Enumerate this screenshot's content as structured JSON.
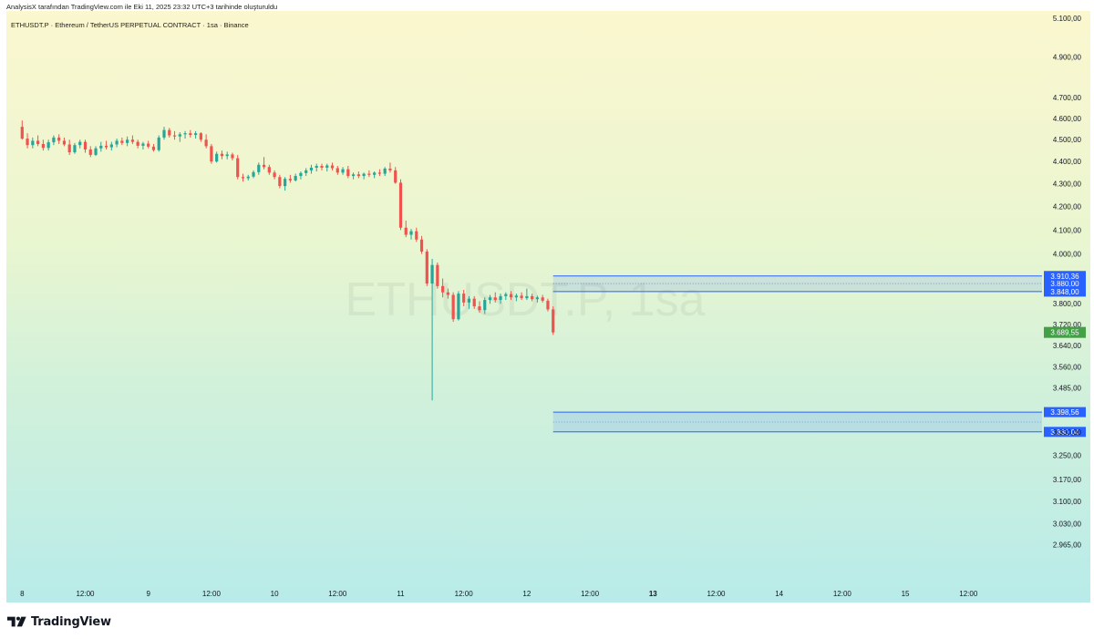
{
  "header": {
    "attribution": "AnalysisX tarafından TradingView.com ile Eki 11, 2025 23:32 UTC+3 tarihinde oluşturuldu",
    "symbol_line": "ETHUSDT.P · Ethereum / TetherUS PERPETUAL CONTRACT · 1sa · Binance"
  },
  "watermark": "ETHUSDT.P, 1sa",
  "brand": {
    "name": "TradingView"
  },
  "colors": {
    "up": "#26a69a",
    "down": "#ef5350",
    "zone_line": "#2962ff",
    "label_blue": "#2962ff",
    "label_green": "#43a047"
  },
  "chart_data": {
    "type": "candlestick",
    "symbol": "ETHUSDT.P",
    "interval": "1sa",
    "exchange": "Binance",
    "x_ticks": [
      {
        "label": "8",
        "t": 0,
        "bold": false
      },
      {
        "label": "12:00",
        "t": 12,
        "bold": false
      },
      {
        "label": "9",
        "t": 24,
        "bold": false
      },
      {
        "label": "12:00",
        "t": 36,
        "bold": false
      },
      {
        "label": "10",
        "t": 48,
        "bold": false
      },
      {
        "label": "12:00",
        "t": 60,
        "bold": false
      },
      {
        "label": "11",
        "t": 72,
        "bold": false
      },
      {
        "label": "12:00",
        "t": 84,
        "bold": false
      },
      {
        "label": "12",
        "t": 96,
        "bold": false
      },
      {
        "label": "12:00",
        "t": 108,
        "bold": false
      },
      {
        "label": "13",
        "t": 120,
        "bold": true
      },
      {
        "label": "12:00",
        "t": 132,
        "bold": false
      },
      {
        "label": "14",
        "t": 144,
        "bold": false
      },
      {
        "label": "12:00",
        "t": 156,
        "bold": false
      },
      {
        "label": "15",
        "t": 168,
        "bold": false
      },
      {
        "label": "12:00",
        "t": 180,
        "bold": false
      }
    ],
    "x_range": [
      -3,
      194
    ],
    "y_axis": {
      "scale": "log",
      "range": [
        2900,
        5100
      ],
      "ticks": [
        "5.100,00",
        "4.900,00",
        "4.700,00",
        "4.600,00",
        "4.500,00",
        "4.400,00",
        "4.300,00",
        "4.200,00",
        "4.100,00",
        "4.000,00",
        "3.800,00",
        "3.720,00",
        "3.640,00",
        "3.560,00",
        "3.485,00",
        "3.330,00",
        "3.250,00",
        "3.170,00",
        "3.100,00",
        "3.030,00",
        "2.965,00"
      ],
      "tick_values": [
        5100,
        4900,
        4700,
        4600,
        4500,
        4400,
        4300,
        4200,
        4100,
        4000,
        3800,
        3720,
        3640,
        3560,
        3485,
        3330,
        3250,
        3170,
        3100,
        3030,
        2965
      ]
    },
    "zones": [
      {
        "name": "resistance",
        "top": 3910.36,
        "bottom": 3848.0,
        "mid": 3880.0,
        "t_start": 101,
        "top_label": "3.910,36",
        "bottom_label": "3.848,00",
        "mid_label": "3.880,00"
      },
      {
        "name": "support",
        "top": 3398.56,
        "bottom": 3330.04,
        "mid": 3364.0,
        "t_start": 101,
        "top_label": "3.398,56",
        "bottom_label": "3.330,04"
      }
    ],
    "last_price": {
      "value": 3689.55,
      "label": "3.689,55"
    },
    "candles": [
      {
        "o": 4560,
        "h": 4590,
        "l": 4500,
        "c": 4505
      },
      {
        "o": 4505,
        "h": 4530,
        "l": 4460,
        "c": 4475
      },
      {
        "o": 4475,
        "h": 4510,
        "l": 4460,
        "c": 4495
      },
      {
        "o": 4495,
        "h": 4520,
        "l": 4470,
        "c": 4480
      },
      {
        "o": 4480,
        "h": 4500,
        "l": 4450,
        "c": 4462
      },
      {
        "o": 4462,
        "h": 4500,
        "l": 4450,
        "c": 4488
      },
      {
        "o": 4488,
        "h": 4520,
        "l": 4475,
        "c": 4510
      },
      {
        "o": 4510,
        "h": 4525,
        "l": 4480,
        "c": 4495
      },
      {
        "o": 4495,
        "h": 4510,
        "l": 4470,
        "c": 4478
      },
      {
        "o": 4478,
        "h": 4500,
        "l": 4430,
        "c": 4442
      },
      {
        "o": 4442,
        "h": 4485,
        "l": 4435,
        "c": 4475
      },
      {
        "o": 4475,
        "h": 4500,
        "l": 4460,
        "c": 4490
      },
      {
        "o": 4490,
        "h": 4500,
        "l": 4440,
        "c": 4455
      },
      {
        "o": 4455,
        "h": 4470,
        "l": 4420,
        "c": 4430
      },
      {
        "o": 4430,
        "h": 4470,
        "l": 4425,
        "c": 4460
      },
      {
        "o": 4460,
        "h": 4490,
        "l": 4445,
        "c": 4472
      },
      {
        "o": 4472,
        "h": 4495,
        "l": 4455,
        "c": 4465
      },
      {
        "o": 4465,
        "h": 4490,
        "l": 4450,
        "c": 4478
      },
      {
        "o": 4478,
        "h": 4505,
        "l": 4465,
        "c": 4495
      },
      {
        "o": 4495,
        "h": 4510,
        "l": 4475,
        "c": 4485
      },
      {
        "o": 4485,
        "h": 4515,
        "l": 4470,
        "c": 4500
      },
      {
        "o": 4500,
        "h": 4520,
        "l": 4480,
        "c": 4490
      },
      {
        "o": 4490,
        "h": 4500,
        "l": 4460,
        "c": 4472
      },
      {
        "o": 4472,
        "h": 4490,
        "l": 4455,
        "c": 4482
      },
      {
        "o": 4482,
        "h": 4495,
        "l": 4460,
        "c": 4468
      },
      {
        "o": 4468,
        "h": 4480,
        "l": 4445,
        "c": 4452
      },
      {
        "o": 4452,
        "h": 4520,
        "l": 4445,
        "c": 4510
      },
      {
        "o": 4510,
        "h": 4560,
        "l": 4500,
        "c": 4545
      },
      {
        "o": 4545,
        "h": 4555,
        "l": 4510,
        "c": 4520
      },
      {
        "o": 4520,
        "h": 4540,
        "l": 4500,
        "c": 4515
      },
      {
        "o": 4515,
        "h": 4535,
        "l": 4490,
        "c": 4525
      },
      {
        "o": 4525,
        "h": 4540,
        "l": 4505,
        "c": 4530
      },
      {
        "o": 4530,
        "h": 4545,
        "l": 4510,
        "c": 4522
      },
      {
        "o": 4522,
        "h": 4540,
        "l": 4505,
        "c": 4530
      },
      {
        "o": 4530,
        "h": 4535,
        "l": 4490,
        "c": 4500
      },
      {
        "o": 4500,
        "h": 4525,
        "l": 4460,
        "c": 4470
      },
      {
        "o": 4470,
        "h": 4480,
        "l": 4390,
        "c": 4400
      },
      {
        "o": 4400,
        "h": 4445,
        "l": 4395,
        "c": 4435
      },
      {
        "o": 4435,
        "h": 4450,
        "l": 4410,
        "c": 4425
      },
      {
        "o": 4425,
        "h": 4445,
        "l": 4410,
        "c": 4432
      },
      {
        "o": 4432,
        "h": 4440,
        "l": 4405,
        "c": 4415
      },
      {
        "o": 4415,
        "h": 4430,
        "l": 4320,
        "c": 4330
      },
      {
        "o": 4330,
        "h": 4345,
        "l": 4310,
        "c": 4325
      },
      {
        "o": 4325,
        "h": 4340,
        "l": 4315,
        "c": 4332
      },
      {
        "o": 4332,
        "h": 4360,
        "l": 4325,
        "c": 4352
      },
      {
        "o": 4352,
        "h": 4395,
        "l": 4340,
        "c": 4385
      },
      {
        "o": 4385,
        "h": 4420,
        "l": 4365,
        "c": 4375
      },
      {
        "o": 4375,
        "h": 4385,
        "l": 4340,
        "c": 4350
      },
      {
        "o": 4350,
        "h": 4360,
        "l": 4320,
        "c": 4330
      },
      {
        "o": 4330,
        "h": 4340,
        "l": 4280,
        "c": 4290
      },
      {
        "o": 4290,
        "h": 4330,
        "l": 4270,
        "c": 4322
      },
      {
        "o": 4322,
        "h": 4340,
        "l": 4305,
        "c": 4315
      },
      {
        "o": 4315,
        "h": 4345,
        "l": 4310,
        "c": 4335
      },
      {
        "o": 4335,
        "h": 4355,
        "l": 4320,
        "c": 4348
      },
      {
        "o": 4348,
        "h": 4370,
        "l": 4335,
        "c": 4360
      },
      {
        "o": 4360,
        "h": 4385,
        "l": 4345,
        "c": 4372
      },
      {
        "o": 4372,
        "h": 4390,
        "l": 4355,
        "c": 4380
      },
      {
        "o": 4380,
        "h": 4390,
        "l": 4360,
        "c": 4372
      },
      {
        "o": 4372,
        "h": 4390,
        "l": 4355,
        "c": 4382
      },
      {
        "o": 4382,
        "h": 4395,
        "l": 4360,
        "c": 4370
      },
      {
        "o": 4370,
        "h": 4380,
        "l": 4340,
        "c": 4350
      },
      {
        "o": 4350,
        "h": 4375,
        "l": 4340,
        "c": 4365
      },
      {
        "o": 4365,
        "h": 4380,
        "l": 4325,
        "c": 4335
      },
      {
        "o": 4335,
        "h": 4350,
        "l": 4320,
        "c": 4342
      },
      {
        "o": 4342,
        "h": 4355,
        "l": 4325,
        "c": 4335
      },
      {
        "o": 4335,
        "h": 4350,
        "l": 4320,
        "c": 4345
      },
      {
        "o": 4345,
        "h": 4360,
        "l": 4330,
        "c": 4340
      },
      {
        "o": 4340,
        "h": 4355,
        "l": 4325,
        "c": 4350
      },
      {
        "o": 4350,
        "h": 4365,
        "l": 4335,
        "c": 4345
      },
      {
        "o": 4345,
        "h": 4375,
        "l": 4335,
        "c": 4368
      },
      {
        "o": 4368,
        "h": 4395,
        "l": 4350,
        "c": 4360
      },
      {
        "o": 4360,
        "h": 4375,
        "l": 4300,
        "c": 4305
      },
      {
        "o": 4305,
        "h": 4320,
        "l": 4100,
        "c": 4110
      },
      {
        "o": 4110,
        "h": 4140,
        "l": 4070,
        "c": 4080
      },
      {
        "o": 4080,
        "h": 4105,
        "l": 4060,
        "c": 4095
      },
      {
        "o": 4095,
        "h": 4110,
        "l": 4050,
        "c": 4060
      },
      {
        "o": 4060,
        "h": 4075,
        "l": 4000,
        "c": 4010
      },
      {
        "o": 4010,
        "h": 4020,
        "l": 3870,
        "c": 3880
      },
      {
        "o": 3880,
        "h": 3980,
        "l": 3440,
        "c": 3955
      },
      {
        "o": 3955,
        "h": 3965,
        "l": 3860,
        "c": 3870
      },
      {
        "o": 3870,
        "h": 3900,
        "l": 3825,
        "c": 3845
      },
      {
        "o": 3845,
        "h": 3860,
        "l": 3820,
        "c": 3835
      },
      {
        "o": 3835,
        "h": 3845,
        "l": 3730,
        "c": 3740
      },
      {
        "o": 3740,
        "h": 3850,
        "l": 3735,
        "c": 3840
      },
      {
        "o": 3840,
        "h": 3855,
        "l": 3790,
        "c": 3805
      },
      {
        "o": 3805,
        "h": 3830,
        "l": 3780,
        "c": 3820
      },
      {
        "o": 3820,
        "h": 3830,
        "l": 3780,
        "c": 3790
      },
      {
        "o": 3790,
        "h": 3810,
        "l": 3765,
        "c": 3775
      },
      {
        "o": 3775,
        "h": 3825,
        "l": 3760,
        "c": 3815
      },
      {
        "o": 3815,
        "h": 3835,
        "l": 3800,
        "c": 3825
      },
      {
        "o": 3825,
        "h": 3845,
        "l": 3805,
        "c": 3815
      },
      {
        "o": 3815,
        "h": 3840,
        "l": 3800,
        "c": 3830
      },
      {
        "o": 3830,
        "h": 3845,
        "l": 3815,
        "c": 3838
      },
      {
        "o": 3838,
        "h": 3850,
        "l": 3815,
        "c": 3825
      },
      {
        "o": 3825,
        "h": 3840,
        "l": 3810,
        "c": 3832
      },
      {
        "o": 3832,
        "h": 3845,
        "l": 3815,
        "c": 3822
      },
      {
        "o": 3822,
        "h": 3860,
        "l": 3815,
        "c": 3830
      },
      {
        "o": 3830,
        "h": 3840,
        "l": 3810,
        "c": 3818
      },
      {
        "o": 3818,
        "h": 3832,
        "l": 3805,
        "c": 3825
      },
      {
        "o": 3825,
        "h": 3835,
        "l": 3805,
        "c": 3812
      },
      {
        "o": 3812,
        "h": 3820,
        "l": 3770,
        "c": 3778
      },
      {
        "o": 3778,
        "h": 3790,
        "l": 3680,
        "c": 3689.55
      }
    ]
  }
}
